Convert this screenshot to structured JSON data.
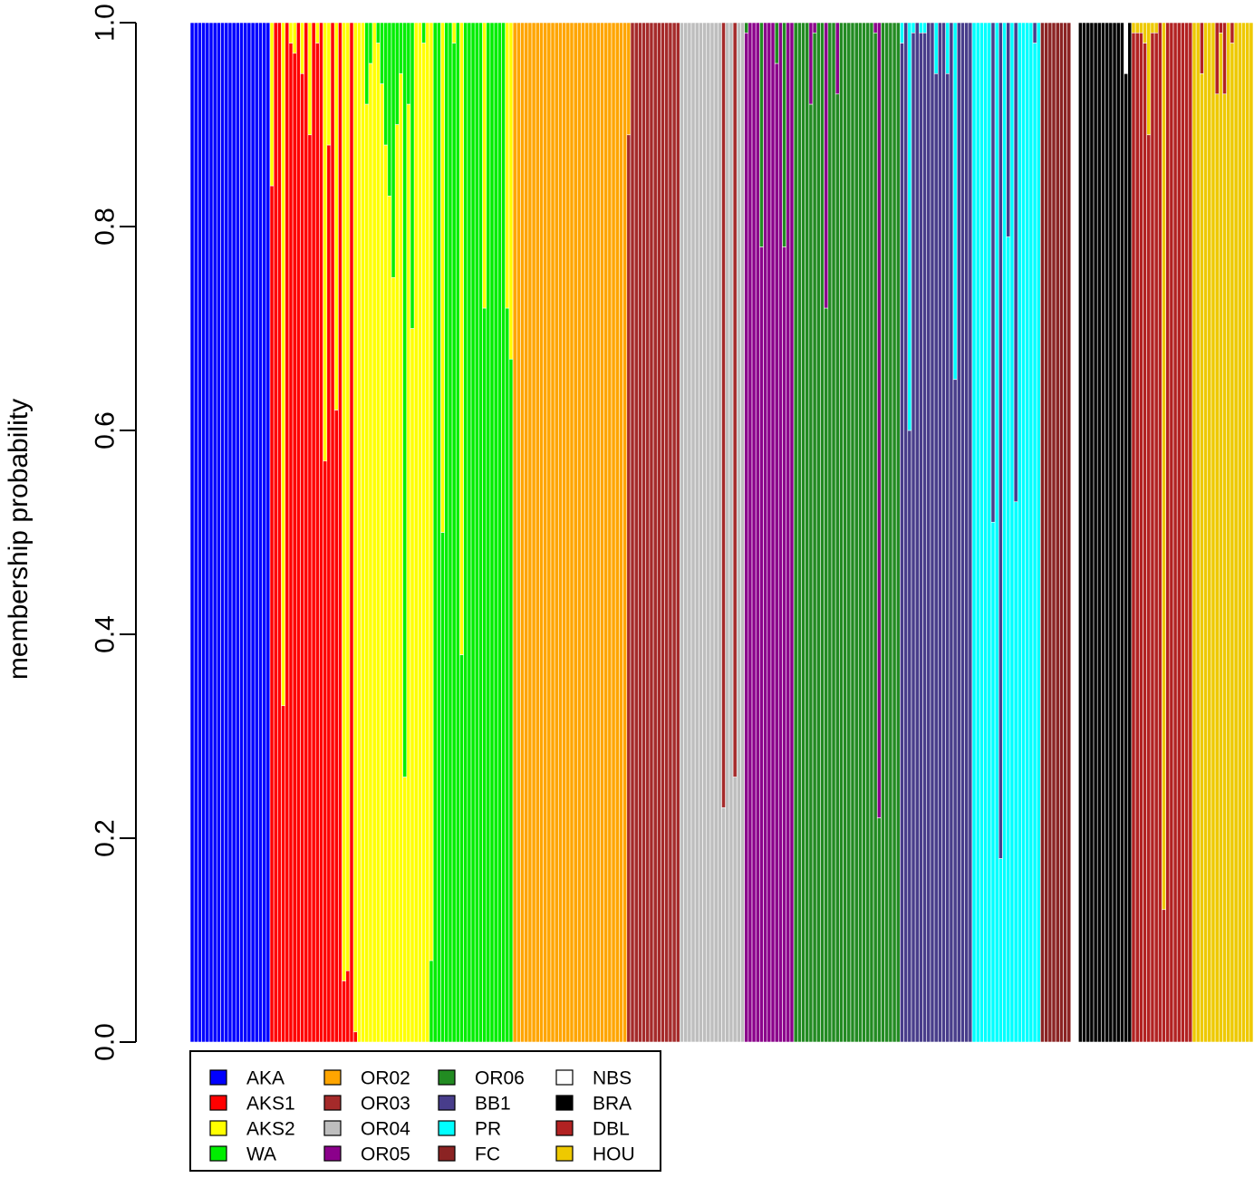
{
  "chart_data": {
    "type": "bar",
    "stacked": true,
    "title": "",
    "xlabel": "",
    "ylabel": "membership probability",
    "ylim": [
      0,
      1
    ],
    "yticks": [
      "0.0",
      "0.2",
      "0.4",
      "0.6",
      "0.8",
      "1.0"
    ],
    "grid": false,
    "legend": {
      "placement": "bottom-left",
      "ncol": 4
    },
    "series": [
      {
        "name": "AKA",
        "color": "#0000ff"
      },
      {
        "name": "AKS1",
        "color": "#ff0000"
      },
      {
        "name": "AKS2",
        "color": "#ffff00"
      },
      {
        "name": "WA",
        "color": "#00ee00"
      },
      {
        "name": "OR02",
        "color": "#ffa500"
      },
      {
        "name": "OR03",
        "color": "#a52a2a"
      },
      {
        "name": "OR04",
        "color": "#bebebe"
      },
      {
        "name": "OR05",
        "color": "#8b008b"
      },
      {
        "name": "OR06",
        "color": "#228b22"
      },
      {
        "name": "BB1",
        "color": "#483d8b"
      },
      {
        "name": "PR",
        "color": "#00ffff"
      },
      {
        "name": "FC",
        "color": "#8b2323"
      },
      {
        "name": "NBS",
        "color": "#ffffff"
      },
      {
        "name": "BRA",
        "color": "#000000"
      },
      {
        "name": "DBL",
        "color": "#b22222"
      },
      {
        "name": "HOU",
        "color": "#eec900"
      }
    ],
    "groups": [
      {
        "base": "AKA",
        "n": 21,
        "mix": []
      },
      {
        "base": "AKS1",
        "n": 24,
        "mix": [
          [
            "AKS2",
            0.16
          ],
          [
            "AKS2",
            0.0
          ],
          [
            "AKS2",
            0.0
          ],
          [
            "AKS2",
            0.67
          ],
          [
            "AKS2",
            0.0
          ],
          [
            "AKS2",
            0.02
          ],
          [
            "AKS2",
            0.03
          ],
          [
            "AKS2",
            0.0
          ],
          [
            "AKS2",
            0.05
          ],
          [
            "AKS2",
            0.0
          ],
          [
            "AKS2",
            0.11
          ],
          [
            "AKS2",
            0.0
          ],
          [
            "AKS2",
            0.02
          ],
          [
            "AKS2",
            0.0
          ],
          [
            "AKS2",
            0.43
          ],
          [
            "AKS2",
            0.12
          ],
          [
            "AKS2",
            0.0
          ],
          [
            "AKS2",
            0.38
          ],
          [
            "AKS2",
            0.0
          ],
          [
            "AKS2",
            0.94
          ],
          [
            "AKS2",
            0.93
          ],
          [
            "AKS2",
            0.0
          ],
          [
            "AKS2",
            0.99
          ],
          [
            "AKS2",
            1.0
          ]
        ]
      },
      {
        "base": "AKS2",
        "n": 18,
        "mix": [
          [
            "WA",
            0.0
          ],
          [
            "WA",
            0.08
          ],
          [
            "WA",
            0.04
          ],
          [
            "WA",
            0.0
          ],
          [
            "WA",
            0.02
          ],
          [
            "WA",
            0.06
          ],
          [
            "WA",
            0.12
          ],
          [
            "WA",
            0.17
          ],
          [
            "WA",
            0.25
          ],
          [
            "WA",
            0.1
          ],
          [
            "WA",
            0.05
          ],
          [
            "WA",
            0.74
          ],
          [
            "WA",
            0.08
          ],
          [
            "WA",
            0.3
          ],
          [
            "WA",
            0.0
          ],
          [
            "WA",
            0.0
          ],
          [
            "WA",
            0.02
          ],
          [
            "WA",
            0.0
          ]
        ]
      },
      {
        "base": "WA",
        "n": 22,
        "mix": [
          [
            "AKS2",
            0.92
          ],
          [
            "AKS2",
            0.0
          ],
          [
            "AKS2",
            0.0
          ],
          [
            "AKS2",
            0.5
          ],
          [
            "AKS2",
            0.0
          ],
          [
            "AKS2",
            0.0
          ],
          [
            "AKS2",
            0.02
          ],
          [
            "AKS2",
            0.0
          ],
          [
            "AKS2",
            0.62
          ],
          [
            "AKS2",
            0.0
          ],
          [
            "AKS2",
            0.0
          ],
          [
            "AKS2",
            0.0
          ],
          [
            "AKS2",
            0.0
          ],
          [
            "AKS2",
            0.0
          ],
          [
            "AKS2",
            0.28
          ],
          [
            "AKS2",
            0.0
          ],
          [
            "AKS2",
            0.0
          ],
          [
            "AKS2",
            0.0
          ],
          [
            "AKS2",
            0.0
          ],
          [
            "AKS2",
            0.0
          ],
          [
            "AKS2",
            0.28
          ],
          [
            "AKS2",
            0.33
          ]
        ]
      },
      {
        "base": "OR02",
        "n": 30,
        "mix": []
      },
      {
        "base": "OR03",
        "n": 14,
        "mix": [
          [
            "OR02",
            0.11
          ]
        ]
      },
      {
        "base": "OR04",
        "n": 17,
        "mix": [
          [
            "OR03",
            0.0
          ],
          [
            "OR03",
            0.0
          ],
          [
            "OR03",
            0.0
          ],
          [
            "OR03",
            0.0
          ],
          [
            "OR03",
            0.0
          ],
          [
            "OR03",
            0.0
          ],
          [
            "OR03",
            0.0
          ],
          [
            "OR03",
            0.0
          ],
          [
            "OR03",
            0.0
          ],
          [
            "OR03",
            0.0
          ],
          [
            "OR03",
            0.0
          ],
          [
            "OR03",
            0.77
          ],
          [
            "OR03",
            0.0
          ],
          [
            "OR03",
            0.0
          ],
          [
            "OR03",
            0.74
          ]
        ]
      },
      {
        "base": "OR05",
        "n": 13,
        "mix": [
          [
            "OR06",
            0.01
          ],
          [
            "OR06",
            0.0
          ],
          [
            "OR06",
            0.0
          ],
          [
            "OR06",
            0.0
          ],
          [
            "OR06",
            0.22
          ],
          [
            "OR06",
            0.0
          ],
          [
            "OR06",
            0.0
          ],
          [
            "OR06",
            0.0
          ],
          [
            "OR06",
            0.04
          ],
          [
            "OR06",
            0.0
          ],
          [
            "OR06",
            0.22
          ]
        ]
      },
      {
        "base": "OR06",
        "n": 28,
        "mix": [
          [
            "OR05",
            0.0
          ],
          [
            "OR05",
            0.0
          ],
          [
            "OR05",
            0.0
          ],
          [
            "OR05",
            0.0
          ],
          [
            "OR05",
            0.08
          ],
          [
            "OR05",
            0.01
          ],
          [
            "OR05",
            0.0
          ],
          [
            "OR05",
            0.0
          ],
          [
            "OR05",
            0.28
          ],
          [
            "OR05",
            0.0
          ],
          [
            "OR05",
            0.0
          ],
          [
            "OR05",
            0.07
          ],
          [
            "OR05",
            0.0
          ],
          [
            "OR05",
            0.0
          ],
          [
            "OR05",
            0.0
          ],
          [
            "OR05",
            0.0
          ],
          [
            "OR05",
            0.0
          ],
          [
            "OR05",
            0.0
          ],
          [
            "OR05",
            0.0
          ],
          [
            "OR05",
            0.0
          ],
          [
            "OR05",
            0.0
          ],
          [
            "OR05",
            0.01
          ],
          [
            "OR05",
            0.78
          ],
          [
            "OR05",
            0.0
          ]
        ]
      },
      {
        "base": "BB1",
        "n": 19,
        "mix": [
          [
            "PR",
            0.02
          ],
          [
            "PR",
            0.0
          ],
          [
            "PR",
            0.4
          ],
          [
            "PR",
            0.01
          ],
          [
            "PR",
            0.0
          ],
          [
            "PR",
            0.01
          ],
          [
            "PR",
            0.01
          ],
          [
            "PR",
            0.0
          ],
          [
            "PR",
            0.0
          ],
          [
            "PR",
            0.05
          ],
          [
            "PR",
            0.0
          ],
          [
            "PR",
            0.0
          ],
          [
            "PR",
            0.05
          ],
          [
            "PR",
            0.0
          ],
          [
            "PR",
            0.35
          ]
        ]
      },
      {
        "base": "PR",
        "n": 18,
        "mix": [
          [
            "BB1",
            0.0
          ],
          [
            "BB1",
            0.0
          ],
          [
            "BB1",
            0.0
          ],
          [
            "BB1",
            0.0
          ],
          [
            "BB1",
            0.0
          ],
          [
            "BB1",
            0.49
          ],
          [
            "BB1",
            0.0
          ],
          [
            "BB1",
            0.82
          ],
          [
            "BB1",
            0.0
          ],
          [
            "BB1",
            0.21
          ],
          [
            "BB1",
            0.0
          ],
          [
            "BB1",
            0.47
          ],
          [
            "BB1",
            0.0
          ],
          [
            "BB1",
            0.0
          ],
          [
            "BB1",
            0.0
          ],
          [
            "BB1",
            0.0
          ],
          [
            "BB1",
            0.02
          ]
        ]
      },
      {
        "base": "FC",
        "n": 8,
        "mix": []
      },
      {
        "base": "NBS",
        "n": 2,
        "mix": []
      },
      {
        "base": "BRA",
        "n": 14,
        "mix": [
          [
            "NBS",
            0.0
          ],
          [
            "NBS",
            0.0
          ],
          [
            "NBS",
            0.0
          ],
          [
            "NBS",
            0.0
          ],
          [
            "NBS",
            0.0
          ],
          [
            "NBS",
            0.0
          ],
          [
            "NBS",
            0.0
          ],
          [
            "NBS",
            0.0
          ],
          [
            "NBS",
            0.0
          ],
          [
            "NBS",
            0.0
          ],
          [
            "NBS",
            0.0
          ],
          [
            "NBS",
            0.0
          ],
          [
            "NBS",
            0.05
          ],
          [
            "NBS",
            0.0
          ]
        ]
      },
      {
        "base": "DBL",
        "n": 16,
        "mix": [
          [
            "HOU",
            0.01
          ],
          [
            "HOU",
            0.01
          ],
          [
            "HOU",
            0.01
          ],
          [
            "HOU",
            0.02
          ],
          [
            "HOU",
            0.11
          ],
          [
            "HOU",
            0.01
          ],
          [
            "HOU",
            0.01
          ],
          [
            "HOU",
            0.0
          ],
          [
            "HOU",
            0.87
          ],
          [
            "HOU",
            0.0
          ],
          [
            "HOU",
            0.0
          ],
          [
            "HOU",
            0.0
          ],
          [
            "HOU",
            0.0
          ],
          [
            "HOU",
            0.0
          ],
          [
            "HOU",
            0.0
          ],
          [
            "HOU",
            0.0
          ]
        ]
      },
      {
        "base": "HOU",
        "n": 16,
        "mix": [
          [
            "DBL",
            0.0
          ],
          [
            "DBL",
            0.0
          ],
          [
            "DBL",
            0.05
          ],
          [
            "DBL",
            0.0
          ],
          [
            "DBL",
            0.0
          ],
          [
            "DBL",
            0.0
          ],
          [
            "DBL",
            0.07
          ],
          [
            "DBL",
            0.01
          ],
          [
            "DBL",
            0.07
          ],
          [
            "DBL",
            0.0
          ],
          [
            "DBL",
            0.02
          ],
          [
            "DBL",
            0.0
          ],
          [
            "DBL",
            0.0
          ],
          [
            "DBL",
            0.0
          ],
          [
            "DBL",
            0.0
          ],
          [
            "DBL",
            0.0
          ]
        ]
      }
    ]
  }
}
